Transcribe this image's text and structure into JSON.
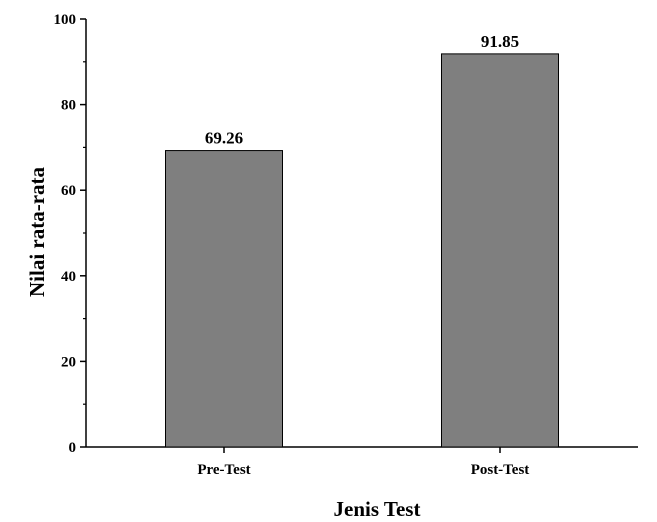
{
  "chart_data": {
    "type": "bar",
    "categories": [
      "Pre-Test",
      "Post-Test"
    ],
    "values": [
      69.26,
      91.85
    ],
    "value_labels": [
      "69.26",
      "91.85"
    ],
    "xlabel": "Jenis Test",
    "ylabel": "Nilai rata-rata",
    "ylim": [
      0,
      100
    ],
    "yticks": [
      0,
      20,
      40,
      60,
      80,
      100
    ],
    "grid": false,
    "bar_color": "#7f7f7f",
    "bar_edge_color": "#000000"
  }
}
